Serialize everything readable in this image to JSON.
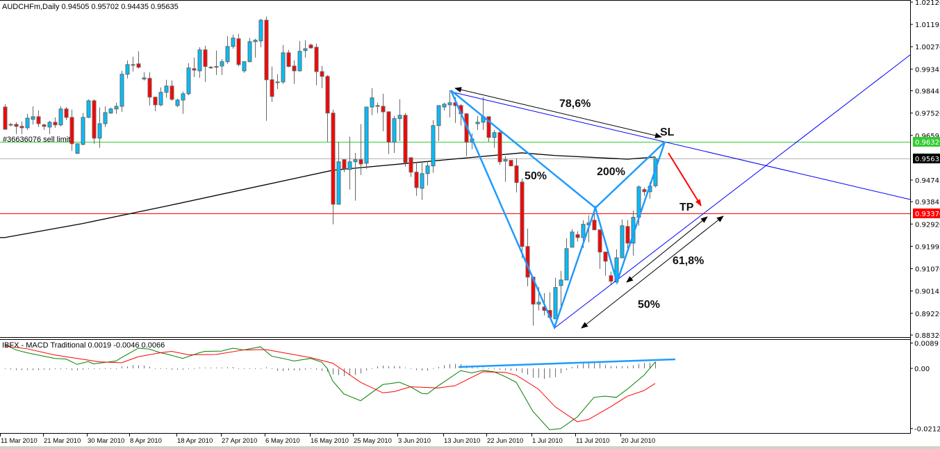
{
  "header": {
    "title": "AUDCHFm,Daily  0.94505 0.95702 0.94435 0.95635"
  },
  "order_label": "#36636076 sell limit",
  "macd_label": "IBFX - MACD Traditional 0.0019 -0.0046 0.0066",
  "annotations": {
    "fib_786": "78,6%",
    "sl": "SL",
    "fib_50_a": "50%",
    "fib_200": "200%",
    "tp": "TP",
    "fib_618": "61,8%",
    "fib_50_b": "50%"
  },
  "colors": {
    "bull": "#00bfff",
    "bear": "#ff0000",
    "candle_border": "#666666",
    "pattern": "#1e9bff",
    "trendline": "#0000ff",
    "sell_limit_line": "#33cc33",
    "tp_line": "#ff0000",
    "bid_line": "#b4b4b4",
    "ma": "#000000",
    "macd_main": "#008000",
    "macd_signal": "#ff0000"
  },
  "chart_data": [
    {
      "type": "candlestick",
      "symbol": "AUDCHFm",
      "timeframe": "Daily",
      "ylim": [
        0.8832,
        1.0212
      ],
      "y_ticks": [
        "1.02120",
        "1.01195",
        "1.00270",
        "0.99345",
        "0.98445",
        "0.97520",
        "0.96595",
        "0.94745",
        "0.93845",
        "0.92920",
        "0.91995",
        "0.91070",
        "0.90145",
        "0.89220",
        "0.88320"
      ],
      "x_ticks": [
        "11 Mar 2010",
        "21 Mar 2010",
        "30 Mar 2010",
        "8 Apr 2010",
        "18 Apr 2010",
        "27 Apr 2010",
        "6 May 2010",
        "16 May 2010",
        "25 May 2010",
        "3 Jun 2010",
        "13 Jun 2010",
        "22 Jun 2010",
        "1 Jul 2010",
        "11 Jul 2010",
        "20 Jul 2010"
      ],
      "levels": [
        {
          "name": "sell-limit",
          "price": 0.96329,
          "label": "0.96329"
        },
        {
          "name": "bid",
          "price": 0.95635,
          "label": "0.95635"
        },
        {
          "name": "take-profit",
          "price": 0.9337,
          "label": "0.93370"
        }
      ],
      "ohlc": [
        [
          0.9777,
          0.9789,
          0.9682,
          0.9685
        ],
        [
          0.9705,
          0.9711,
          0.9697,
          0.9705
        ],
        [
          0.9705,
          0.9714,
          0.9665,
          0.9697
        ],
        [
          0.9697,
          0.9717,
          0.9665,
          0.9691
        ],
        [
          0.9691,
          0.9749,
          0.9682,
          0.9731
        ],
        [
          0.9726,
          0.978,
          0.9705,
          0.9737
        ],
        [
          0.9737,
          0.9763,
          0.9694,
          0.9708
        ],
        [
          0.9703,
          0.9708,
          0.9682,
          0.9697
        ],
        [
          0.9694,
          0.972,
          0.9665,
          0.9714
        ],
        [
          0.9714,
          0.9734,
          0.9691,
          0.9703
        ],
        [
          0.9703,
          0.978,
          0.9697,
          0.9769
        ],
        [
          0.9769,
          0.9777,
          0.9723,
          0.9734
        ],
        [
          0.9734,
          0.9766,
          0.9596,
          0.9625
        ],
        [
          0.9585,
          0.9625,
          0.9582,
          0.9625
        ],
        [
          0.9622,
          0.9752,
          0.9619,
          0.9734
        ],
        [
          0.9734,
          0.9809,
          0.9731,
          0.9803
        ],
        [
          0.9803,
          0.9809,
          0.9625,
          0.9648
        ],
        [
          0.9648,
          0.9775,
          0.9608,
          0.9708
        ],
        [
          0.9708,
          0.978,
          0.9694,
          0.9754
        ],
        [
          0.9752,
          0.9775,
          0.9749,
          0.9769
        ],
        [
          0.9769,
          0.9795,
          0.9749,
          0.978
        ],
        [
          0.978,
          0.9927,
          0.9757,
          0.9913
        ],
        [
          0.9913,
          0.997,
          0.9896,
          0.9953
        ],
        [
          0.9953,
          0.9985,
          0.9924,
          0.9953
        ],
        [
          0.9956,
          1.0008,
          0.9936,
          0.9942
        ],
        [
          0.9893,
          0.9921,
          0.9887,
          0.9898
        ],
        [
          0.9896,
          0.9921,
          0.9783,
          0.9818
        ],
        [
          0.9818,
          0.9818,
          0.976,
          0.9786
        ],
        [
          0.9786,
          0.9858,
          0.978,
          0.9838
        ],
        [
          0.9838,
          0.989,
          0.9815,
          0.9864
        ],
        [
          0.9864,
          0.9887,
          0.9803,
          0.9809
        ],
        [
          0.9783,
          0.9812,
          0.9777,
          0.9806
        ],
        [
          0.9806,
          0.9841,
          0.9749,
          0.9832
        ],
        [
          0.9832,
          0.9959,
          0.9826,
          0.9939
        ],
        [
          0.9936,
          0.9982,
          0.9901,
          0.993
        ],
        [
          0.9927,
          1.0025,
          0.9898,
          1.0014
        ],
        [
          1.0014,
          1.0031,
          0.9881,
          0.9945
        ],
        [
          0.9942,
          0.9947,
          0.9936,
          0.9942
        ],
        [
          0.9945,
          1.0011,
          0.991,
          0.9945
        ],
        [
          0.9947,
          0.9976,
          0.991,
          0.9965
        ],
        [
          0.9965,
          1.0071,
          0.9956,
          1.0028
        ],
        [
          1.0028,
          1.0077,
          1.0019,
          1.0063
        ],
        [
          1.006,
          1.008,
          0.9945,
          0.9953
        ],
        [
          0.9927,
          0.9965,
          0.9919,
          0.9965
        ],
        [
          0.9965,
          1.0063,
          0.9962,
          1.0048
        ],
        [
          1.0048,
          1.006,
          0.9982,
          1.0054
        ],
        [
          1.0051,
          1.0143,
          1.0025,
          1.0137
        ],
        [
          1.0137,
          1.0152,
          0.972,
          0.989
        ],
        [
          0.989,
          0.9945,
          0.9798,
          0.9821
        ],
        [
          0.9881,
          0.9913,
          0.9852,
          0.9881
        ],
        [
          0.9881,
          1.0034,
          0.9873,
          1.0002
        ],
        [
          1.0002,
          1.0014,
          0.9942,
          0.9945
        ],
        [
          0.9947,
          0.997,
          0.9873,
          0.9927
        ],
        [
          0.9927,
          1.0051,
          0.9924,
          1.0008
        ],
        [
          1.0011,
          1.0054,
          0.9982,
          1.0019
        ],
        [
          1.0034,
          1.004,
          1.0019,
          1.0022
        ],
        [
          1.0025,
          1.004,
          0.9867,
          0.9924
        ],
        [
          0.9924,
          0.9947,
          0.9855,
          0.9904
        ],
        [
          0.9904,
          0.991,
          0.9633,
          0.9752
        ],
        [
          0.9752,
          0.9766,
          0.9291,
          0.9374
        ],
        [
          0.9374,
          0.9633,
          0.9374,
          0.955
        ],
        [
          0.9559,
          0.9559,
          0.9507,
          0.9521
        ],
        [
          0.9518,
          0.9654,
          0.9435,
          0.955
        ],
        [
          0.955,
          0.9587,
          0.9389,
          0.9559
        ],
        [
          0.9559,
          0.9706,
          0.9495,
          0.9541
        ],
        [
          0.9544,
          0.9777,
          0.9521,
          0.9777
        ],
        [
          0.9777,
          0.9855,
          0.9743,
          0.9815
        ],
        [
          0.9783,
          0.9795,
          0.9752,
          0.978
        ],
        [
          0.978,
          0.9832,
          0.9677,
          0.9757
        ],
        [
          0.9757,
          0.976,
          0.9582,
          0.9631
        ],
        [
          0.9631,
          0.974,
          0.9587,
          0.9729
        ],
        [
          0.9729,
          0.9809,
          0.9636,
          0.9743
        ],
        [
          0.9743,
          0.9752,
          0.953,
          0.9547
        ],
        [
          0.9567,
          0.9567,
          0.9487,
          0.9507
        ],
        [
          0.9507,
          0.955,
          0.9409,
          0.9443
        ],
        [
          0.944,
          0.955,
          0.9392,
          0.9501
        ],
        [
          0.9501,
          0.9553,
          0.9452,
          0.9533
        ],
        [
          0.9533,
          0.9723,
          0.9504,
          0.97
        ],
        [
          0.97,
          0.9783,
          0.9636,
          0.9783
        ],
        [
          0.9777,
          0.9795,
          0.9763,
          0.9789
        ],
        [
          0.9786,
          0.9847,
          0.9734,
          0.9795
        ],
        [
          0.9795,
          0.9818,
          0.9711,
          0.9783
        ],
        [
          0.9783,
          0.9789,
          0.97,
          0.9749
        ],
        [
          0.9749,
          0.9752,
          0.9573,
          0.9631
        ],
        [
          0.9631,
          0.9668,
          0.9602,
          0.9645
        ],
        [
          0.9708,
          0.974,
          0.9682,
          0.9714
        ],
        [
          0.9714,
          0.9818,
          0.9682,
          0.9737
        ],
        [
          0.9737,
          0.9737,
          0.9633,
          0.9651
        ],
        [
          0.9651,
          0.9682,
          0.9608,
          0.9671
        ],
        [
          0.9671,
          0.9682,
          0.9538,
          0.955
        ],
        [
          0.9553,
          0.9573,
          0.9467,
          0.9559
        ],
        [
          0.9556,
          0.9556,
          0.9533,
          0.9533
        ],
        [
          0.9533,
          0.9564,
          0.9423,
          0.9464
        ],
        [
          0.9466,
          0.9481,
          0.915,
          0.9199
        ],
        [
          0.9199,
          0.9273,
          0.9034,
          0.9072
        ],
        [
          0.9072,
          0.9072,
          0.8871,
          0.896
        ],
        [
          0.896,
          0.9032,
          0.8934,
          0.8968
        ],
        [
          0.8948,
          0.9006,
          0.8913,
          0.8934
        ],
        [
          0.8934,
          0.9009,
          0.8902,
          0.8905
        ],
        [
          0.8899,
          0.9069,
          0.8899,
          0.9029
        ],
        [
          0.9037,
          0.9098,
          0.8939,
          0.906
        ],
        [
          0.906,
          0.9233,
          0.906,
          0.919
        ],
        [
          0.9196,
          0.9271,
          0.9196,
          0.9259
        ],
        [
          0.9248,
          0.9262,
          0.9219,
          0.9236
        ],
        [
          0.9236,
          0.9308,
          0.9193,
          0.9291
        ],
        [
          0.9288,
          0.9328,
          0.9216,
          0.9297
        ],
        [
          0.9308,
          0.9357,
          0.9268,
          0.9268
        ],
        [
          0.9268,
          0.9268,
          0.9106,
          0.9176
        ],
        [
          0.9176,
          0.9176,
          0.9078,
          0.9138
        ],
        [
          0.9078,
          0.9095,
          0.904,
          0.9055
        ],
        [
          0.9052,
          0.9187,
          0.9052,
          0.9152
        ],
        [
          0.9152,
          0.9311,
          0.9152,
          0.9285
        ],
        [
          0.9282,
          0.9308,
          0.9184,
          0.9213
        ],
        [
          0.9213,
          0.9348,
          0.9161,
          0.932
        ],
        [
          0.932,
          0.9452,
          0.9285,
          0.9446
        ],
        [
          0.9435,
          0.9443,
          0.9409,
          0.9426
        ],
        [
          0.9426,
          0.9466,
          0.9397,
          0.9449
        ],
        [
          0.94505,
          0.95702,
          0.94435,
          0.95635
        ]
      ],
      "moving_average": [
        [
          0,
          0.9236
        ],
        [
          14,
          0.9294
        ],
        [
          29,
          0.9366
        ],
        [
          59,
          0.9515
        ],
        [
          74,
          0.9547
        ],
        [
          93,
          0.9587
        ],
        [
          99,
          0.9576
        ],
        [
          112,
          0.9561
        ],
        [
          117,
          0.957
        ]
      ]
    },
    {
      "type": "bar+line",
      "name": "IBFX - MACD Traditional",
      "ylim": [
        -0.0212,
        0.0089
      ],
      "y_ticks": [
        "0.0089",
        "0.00",
        "-0.0212"
      ],
      "histogram": [
        -0.0002,
        -0.0004,
        -0.0006,
        -0.0006,
        -0.0006,
        -0.0006,
        -0.0006,
        -0.0005,
        -0.0005,
        -0.0003,
        -0.0003,
        -0.0003,
        -0.0006,
        -0.0007,
        -0.0005,
        -0.0002,
        -0.0002,
        -0.0001,
        0,
        0,
        0.0002,
        0.0007,
        0.0007,
        0.0011,
        0.0011,
        0.001,
        0.0006,
        0,
        -0.0002,
        -0.0002,
        -0.0005,
        -0.0005,
        -0.0005,
        -0.0002,
        0,
        0.0003,
        0.0003,
        0.0003,
        0.0003,
        0.0003,
        0.0004,
        0.0005,
        0.0002,
        0,
        0,
        0.0001,
        0.0002,
        0.0004,
        -0.0002,
        -0.0009,
        -0.0009,
        -0.0007,
        -0.0007,
        -0.0007,
        -0.0005,
        0,
        -0.0005,
        -0.0009,
        -0.0011,
        -0.0021,
        -0.0024,
        -0.0027,
        -0.0025,
        -0.0023,
        -0.0018,
        -0.0008,
        0,
        0.0007,
        0.001,
        0.0008,
        0.0008,
        0.0008,
        0.0003,
        0.0001,
        -0.0006,
        -0.0008,
        -0.0008,
        0,
        0.0005,
        0.0011,
        0.0015,
        0.0016,
        0.0015,
        0.001,
        0.0007,
        0.0003,
        0.0003,
        0,
        -0.0003,
        -0.0005,
        -0.0007,
        -0.0008,
        -0.0009,
        -0.0016,
        -0.0022,
        -0.0033,
        -0.0033,
        -0.0037,
        -0.0033,
        -0.0031,
        -0.0017,
        -0.0006,
        0.0005,
        0.0012,
        0.0018,
        0.0022,
        0.0022,
        0.0019,
        0.0013,
        0.0008,
        0.0008,
        0.0008,
        0.0008,
        0.0011,
        0.0016,
        0.0019,
        0.002,
        0.0024
      ],
      "main": [
        [
          0,
          0.0084
        ],
        [
          2,
          0.0065
        ],
        [
          4,
          0.0055
        ],
        [
          9,
          0.0035
        ],
        [
          11,
          0.0033
        ],
        [
          13,
          0.0014
        ],
        [
          15,
          0.0024
        ],
        [
          16,
          0.0016
        ],
        [
          20,
          0.0026
        ],
        [
          21,
          0.0038
        ],
        [
          24,
          0.0071
        ],
        [
          26,
          0.0068
        ],
        [
          28,
          0.0055
        ],
        [
          29,
          0.0051
        ],
        [
          32,
          0.0035
        ],
        [
          35,
          0.0055
        ],
        [
          36,
          0.006
        ],
        [
          39,
          0.0061
        ],
        [
          41,
          0.0071
        ],
        [
          43,
          0.0065
        ],
        [
          46,
          0.0076
        ],
        [
          48,
          0.0043
        ],
        [
          50,
          0.0035
        ],
        [
          52,
          0.0026
        ],
        [
          55,
          0.0035
        ],
        [
          57,
          0.0022
        ],
        [
          58,
          0
        ],
        [
          59,
          -0.0045
        ],
        [
          61,
          -0.009
        ],
        [
          64,
          -0.0114
        ],
        [
          68,
          -0.0057
        ],
        [
          71,
          -0.0049
        ],
        [
          73,
          -0.0065
        ],
        [
          75,
          -0.0088
        ],
        [
          76,
          -0.009
        ],
        [
          78,
          -0.0061
        ],
        [
          82,
          -0.0008
        ],
        [
          84,
          -0.0016
        ],
        [
          86,
          -0.0007
        ],
        [
          88,
          -0.0012
        ],
        [
          90,
          -0.0029
        ],
        [
          92,
          -0.0049
        ],
        [
          95,
          -0.0151
        ],
        [
          98,
          -0.0216
        ],
        [
          100,
          -0.0212
        ],
        [
          103,
          -0.0171
        ],
        [
          106,
          -0.0102
        ],
        [
          108,
          -0.0098
        ],
        [
          110,
          -0.0102
        ],
        [
          112,
          -0.0073
        ],
        [
          115,
          -0.0024
        ],
        [
          117,
          0.0022
        ]
      ],
      "signal": [
        [
          0,
          0.0079
        ],
        [
          4,
          0.0069
        ],
        [
          9,
          0.0047
        ],
        [
          15,
          0.0029
        ],
        [
          17,
          0.0023
        ],
        [
          21,
          0.002
        ],
        [
          24,
          0.0041
        ],
        [
          28,
          0.0055
        ],
        [
          30,
          0.006
        ],
        [
          33,
          0.0048
        ],
        [
          38,
          0.0049
        ],
        [
          43,
          0.0065
        ],
        [
          47,
          0.0066
        ],
        [
          55,
          0.0038
        ],
        [
          59,
          0.0018
        ],
        [
          64,
          -0.0049
        ],
        [
          68,
          -0.0086
        ],
        [
          70,
          -0.0082
        ],
        [
          73,
          -0.0065
        ],
        [
          78,
          -0.0069
        ],
        [
          81,
          -0.0061
        ],
        [
          86,
          -0.0012
        ],
        [
          90,
          -0.0014
        ],
        [
          92,
          -0.0024
        ],
        [
          96,
          -0.0073
        ],
        [
          99,
          -0.0135
        ],
        [
          103,
          -0.0188
        ],
        [
          105,
          -0.018
        ],
        [
          109,
          -0.0135
        ],
        [
          112,
          -0.0098
        ],
        [
          115,
          -0.0078
        ],
        [
          117,
          -0.0053
        ]
      ]
    }
  ]
}
